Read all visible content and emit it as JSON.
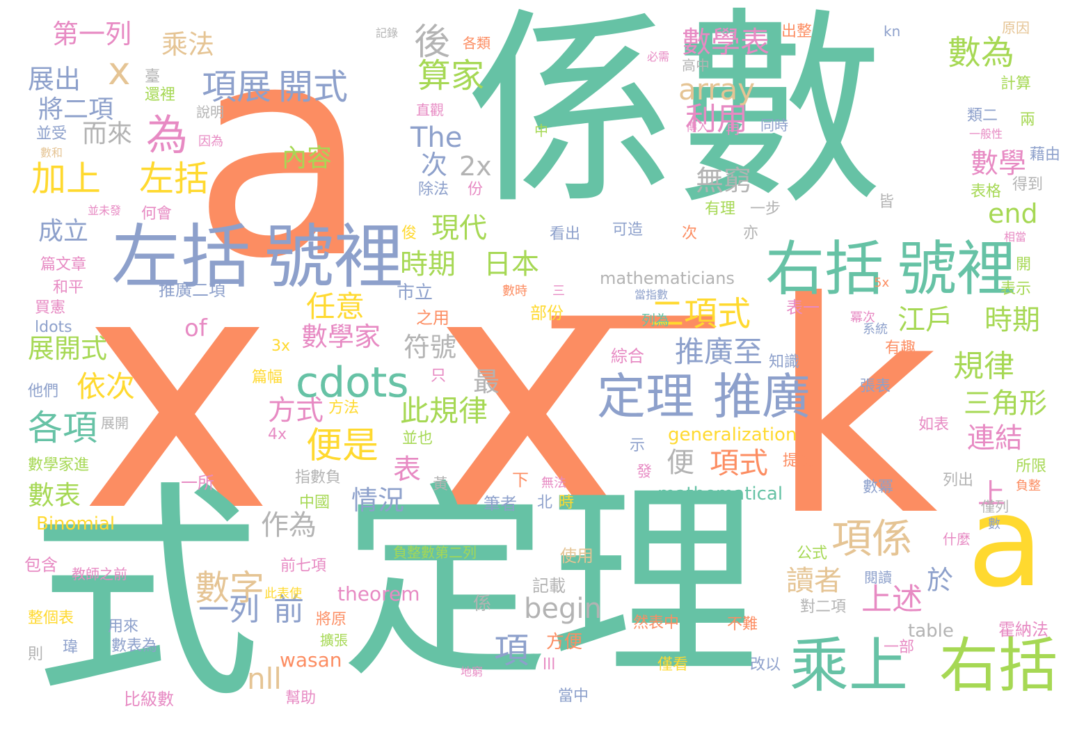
{
  "palette": {
    "teal": "#66c2a5",
    "orange": "#fc8d62",
    "blue": "#8da0cb",
    "pink": "#e78ac3",
    "green": "#a6d854",
    "yellow": "#ffd92f",
    "tan": "#e5c494",
    "gray": "#b3b3b3",
    "background": "#ffffff"
  },
  "words": [
    {
      "text": "a",
      "color": "orange"
    },
    {
      "text": "x",
      "color": "orange"
    },
    {
      "text": "x",
      "color": "orange"
    },
    {
      "text": "k",
      "color": "orange"
    },
    {
      "text": "—",
      "color": "orange"
    },
    {
      "text": "係數",
      "color": "teal"
    },
    {
      "text": "式",
      "color": "teal"
    },
    {
      "text": "定理",
      "color": "teal"
    },
    {
      "text": "a",
      "color": "yellow"
    },
    {
      "text": "左括",
      "color": "blue"
    },
    {
      "text": "號裡",
      "color": "blue"
    },
    {
      "text": "右括",
      "color": "teal"
    },
    {
      "text": "號裡",
      "color": "teal"
    },
    {
      "text": "乘上",
      "color": "teal"
    },
    {
      "text": "右括",
      "color": "green"
    },
    {
      "text": "定理",
      "color": "blue"
    },
    {
      "text": "推廣",
      "color": "blue"
    },
    {
      "text": "cdots",
      "color": "teal"
    },
    {
      "text": "加上",
      "color": "yellow"
    },
    {
      "text": "左括",
      "color": "yellow"
    },
    {
      "text": "為",
      "color": "pink"
    },
    {
      "text": "x",
      "color": "tan"
    },
    {
      "text": "項展",
      "color": "blue"
    },
    {
      "text": "開式",
      "color": "blue"
    },
    {
      "text": "二項式",
      "color": "yellow"
    },
    {
      "text": "項係",
      "color": "tan"
    },
    {
      "text": "array",
      "color": "tan"
    },
    {
      "text": "數學表",
      "color": "pink"
    },
    {
      "text": "數為",
      "color": "green"
    },
    {
      "text": "算家",
      "color": "green"
    },
    {
      "text": "後",
      "color": "gray"
    },
    {
      "text": "利用",
      "color": "pink"
    },
    {
      "text": "The",
      "color": "blue"
    },
    {
      "text": "次",
      "color": "blue"
    },
    {
      "text": "2x",
      "color": "gray"
    },
    {
      "text": "無窮",
      "color": "gray"
    },
    {
      "text": "數學",
      "color": "pink"
    },
    {
      "text": "end",
      "color": "green"
    },
    {
      "text": "現代",
      "color": "green"
    },
    {
      "text": "時期",
      "color": "green"
    },
    {
      "text": "日本",
      "color": "green"
    },
    {
      "text": "江戶",
      "color": "green"
    },
    {
      "text": "時期",
      "color": "green"
    },
    {
      "text": "任意",
      "color": "yellow"
    },
    {
      "text": "數學家",
      "color": "pink"
    },
    {
      "text": "推廣至",
      "color": "blue"
    },
    {
      "text": "規律",
      "color": "green"
    },
    {
      "text": "三角形",
      "color": "green"
    },
    {
      "text": "連結",
      "color": "pink"
    },
    {
      "text": "各項",
      "color": "teal"
    },
    {
      "text": "依次",
      "color": "yellow"
    },
    {
      "text": "便是",
      "color": "yellow"
    },
    {
      "text": "此規律",
      "color": "green"
    },
    {
      "text": "最",
      "color": "gray"
    },
    {
      "text": "方式",
      "color": "pink"
    },
    {
      "text": "符號",
      "color": "gray"
    },
    {
      "text": "上",
      "color": "pink"
    },
    {
      "text": "上述",
      "color": "pink"
    },
    {
      "text": "於",
      "color": "blue"
    },
    {
      "text": "讀者",
      "color": "tan"
    },
    {
      "text": "項式",
      "color": "orange"
    },
    {
      "text": "便",
      "color": "gray"
    },
    {
      "text": "表",
      "color": "pink"
    },
    {
      "text": "情況",
      "color": "blue"
    },
    {
      "text": "作為",
      "color": "gray"
    },
    {
      "text": "數字",
      "color": "tan"
    },
    {
      "text": "一列",
      "color": "blue"
    },
    {
      "text": "前",
      "color": "blue"
    },
    {
      "text": "項",
      "color": "blue"
    },
    {
      "text": "begin",
      "color": "gray"
    },
    {
      "text": "nll",
      "color": "tan"
    },
    {
      "text": "乘法",
      "color": "tan"
    },
    {
      "text": "第一列",
      "color": "pink"
    },
    {
      "text": "展出",
      "color": "blue"
    },
    {
      "text": "將二項",
      "color": "blue"
    },
    {
      "text": "而來",
      "color": "gray"
    },
    {
      "text": "成立",
      "color": "blue"
    },
    {
      "text": "展開式",
      "color": "green"
    },
    {
      "text": "數表",
      "color": "green"
    },
    {
      "text": "內容",
      "color": "green"
    },
    {
      "text": "of",
      "color": "pink"
    },
    {
      "text": "cdots",
      "color": "teal"
    },
    {
      "text": "table",
      "color": "gray"
    },
    {
      "text": "wasan",
      "color": "orange"
    },
    {
      "text": "theorem",
      "color": "pink"
    },
    {
      "text": "Binomial",
      "color": "yellow"
    },
    {
      "text": "mathematical",
      "color": "teal"
    },
    {
      "text": "generalization",
      "color": "yellow"
    },
    {
      "text": "mathematicians",
      "color": "gray"
    },
    {
      "text": "ldots",
      "color": "blue"
    },
    {
      "text": "推廣二項",
      "color": "blue"
    },
    {
      "text": "市立",
      "color": "blue"
    },
    {
      "text": "之用",
      "color": "orange"
    },
    {
      "text": "部份",
      "color": "yellow"
    },
    {
      "text": "數時",
      "color": "orange"
    },
    {
      "text": "三",
      "color": "pink"
    },
    {
      "text": "表一",
      "color": "pink"
    },
    {
      "text": "列為",
      "color": "teal"
    },
    {
      "text": "綜合",
      "color": "pink"
    },
    {
      "text": "知識",
      "color": "blue"
    },
    {
      "text": "有趣",
      "color": "orange"
    },
    {
      "text": "張表",
      "color": "blue"
    },
    {
      "text": "如表",
      "color": "pink"
    },
    {
      "text": "所限",
      "color": "green"
    },
    {
      "text": "列出",
      "color": "gray"
    },
    {
      "text": "數冪",
      "color": "blue"
    },
    {
      "text": "僅列",
      "color": "gray"
    },
    {
      "text": "什麼",
      "color": "pink"
    },
    {
      "text": "公式",
      "color": "green"
    },
    {
      "text": "閱讀",
      "color": "blue"
    },
    {
      "text": "對二項",
      "color": "gray"
    },
    {
      "text": "霍納法",
      "color": "pink"
    },
    {
      "text": "一部",
      "color": "pink"
    },
    {
      "text": "改以",
      "color": "blue"
    },
    {
      "text": "不難",
      "color": "orange"
    },
    {
      "text": "然表中",
      "color": "orange"
    },
    {
      "text": "僅看",
      "color": "yellow"
    },
    {
      "text": "當中",
      "color": "blue"
    },
    {
      "text": "方便",
      "color": "orange"
    },
    {
      "text": "使用",
      "color": "tan"
    },
    {
      "text": "記載",
      "color": "gray"
    },
    {
      "text": "係",
      "color": "gray"
    },
    {
      "text": "筆者",
      "color": "blue"
    },
    {
      "text": "北",
      "color": "blue"
    },
    {
      "text": "時",
      "color": "yellow"
    },
    {
      "text": "下",
      "color": "orange"
    },
    {
      "text": "黃",
      "color": "gray"
    },
    {
      "text": "發",
      "color": "pink"
    },
    {
      "text": "提到",
      "color": "orange"
    },
    {
      "text": "負整",
      "color": "orange"
    },
    {
      "text": "數",
      "color": "blue"
    },
    {
      "text": "無法",
      "color": "pink"
    },
    {
      "text": "中國",
      "color": "green"
    },
    {
      "text": "指數負",
      "color": "gray"
    },
    {
      "text": "一所",
      "color": "pink"
    },
    {
      "text": "負整數第二列",
      "color": "green"
    },
    {
      "text": "前七項",
      "color": "pink"
    },
    {
      "text": "此表使",
      "color": "yellow"
    },
    {
      "text": "包含",
      "color": "pink"
    },
    {
      "text": "教師之前",
      "color": "pink"
    },
    {
      "text": "整個表",
      "color": "yellow"
    },
    {
      "text": "用來",
      "color": "blue"
    },
    {
      "text": "將原",
      "color": "orange"
    },
    {
      "text": "擴張",
      "color": "green"
    },
    {
      "text": "瑋",
      "color": "blue"
    },
    {
      "text": "數表為",
      "color": "blue"
    },
    {
      "text": "則",
      "color": "gray"
    },
    {
      "text": "比級數",
      "color": "pink"
    },
    {
      "text": "幫助",
      "color": "pink"
    },
    {
      "text": "地窮",
      "color": "pink"
    },
    {
      "text": "lll",
      "color": "pink"
    },
    {
      "text": "記錄",
      "color": "gray"
    },
    {
      "text": "各類",
      "color": "orange"
    },
    {
      "text": "出整",
      "color": "orange"
    },
    {
      "text": "kn",
      "color": "blue"
    },
    {
      "text": "原因",
      "color": "tan"
    },
    {
      "text": "必需",
      "color": "pink"
    },
    {
      "text": "高中",
      "color": "gray"
    },
    {
      "text": "計算",
      "color": "green"
    },
    {
      "text": "臺",
      "color": "gray"
    },
    {
      "text": "還裡",
      "color": "green"
    },
    {
      "text": "直觀",
      "color": "pink"
    },
    {
      "text": "說明",
      "color": "gray"
    },
    {
      "text": "類二",
      "color": "blue"
    },
    {
      "text": "一般性",
      "color": "pink"
    },
    {
      "text": "兩",
      "color": "green"
    },
    {
      "text": "並受",
      "color": "blue"
    },
    {
      "text": "數和",
      "color": "tan"
    },
    {
      "text": "因為",
      "color": "pink"
    },
    {
      "text": "中",
      "color": "green"
    },
    {
      "text": "同時",
      "color": "blue"
    },
    {
      "text": "傳入",
      "color": "pink"
    },
    {
      "text": "再",
      "color": "pink"
    },
    {
      "text": "藉由",
      "color": "blue"
    },
    {
      "text": "除法",
      "color": "blue"
    },
    {
      "text": "份",
      "color": "pink"
    },
    {
      "text": "有理",
      "color": "green"
    },
    {
      "text": "一步",
      "color": "gray"
    },
    {
      "text": "皆",
      "color": "gray"
    },
    {
      "text": "表格",
      "color": "green"
    },
    {
      "text": "得到",
      "color": "gray"
    },
    {
      "text": "並未發",
      "color": "pink"
    },
    {
      "text": "何會",
      "color": "pink"
    },
    {
      "text": "可造",
      "color": "blue"
    },
    {
      "text": "看出",
      "color": "blue"
    },
    {
      "text": "次",
      "color": "orange"
    },
    {
      "text": "亦",
      "color": "gray"
    },
    {
      "text": "相當",
      "color": "pink"
    },
    {
      "text": "篇文章",
      "color": "pink"
    },
    {
      "text": "俊",
      "color": "yellow"
    },
    {
      "text": "開",
      "color": "green"
    },
    {
      "text": "和平",
      "color": "pink"
    },
    {
      "text": "5x",
      "color": "orange"
    },
    {
      "text": "表示",
      "color": "green"
    },
    {
      "text": "當指數",
      "color": "blue"
    },
    {
      "text": "買憲",
      "color": "pink"
    },
    {
      "text": "冪次",
      "color": "pink"
    },
    {
      "text": "系統",
      "color": "blue"
    },
    {
      "text": "3x",
      "color": "yellow"
    },
    {
      "text": "篇幅",
      "color": "yellow"
    },
    {
      "text": "只",
      "color": "pink"
    },
    {
      "text": "他們",
      "color": "blue"
    },
    {
      "text": "方法",
      "color": "yellow"
    },
    {
      "text": "展開",
      "color": "gray"
    },
    {
      "text": "4x",
      "color": "pink"
    },
    {
      "text": "並也",
      "color": "green"
    },
    {
      "text": "示",
      "color": "blue"
    },
    {
      "text": "數學家進",
      "color": "green"
    }
  ]
}
